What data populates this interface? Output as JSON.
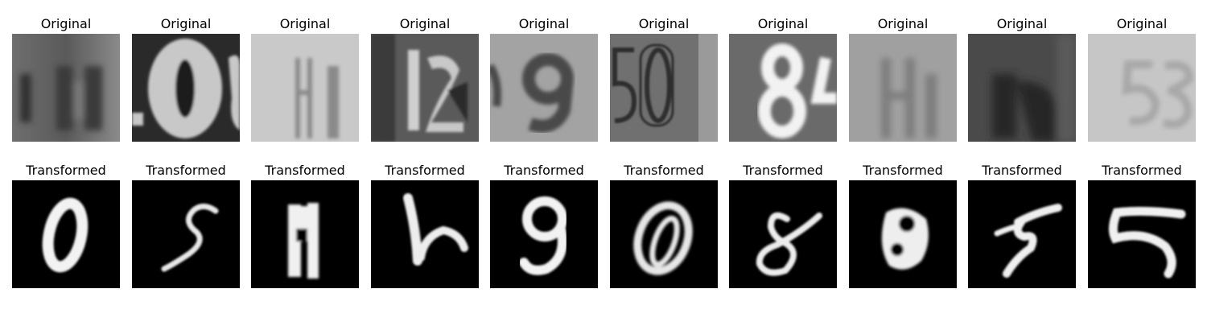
{
  "figure": {
    "rows": [
      {
        "title": "Original",
        "panels": [
          {
            "image": "original-digit-image",
            "title": "Original"
          },
          {
            "image": "original-digit-image",
            "title": "Original"
          },
          {
            "image": "original-digit-image",
            "title": "Original"
          },
          {
            "image": "original-digit-image",
            "title": "Original"
          },
          {
            "image": "original-digit-image",
            "title": "Original"
          },
          {
            "image": "original-digit-image",
            "title": "Original"
          },
          {
            "image": "original-digit-image",
            "title": "Original"
          },
          {
            "image": "original-digit-image",
            "title": "Original"
          },
          {
            "image": "original-digit-image",
            "title": "Original"
          },
          {
            "image": "original-digit-image",
            "title": "Original"
          }
        ]
      },
      {
        "title": "Transformed",
        "panels": [
          {
            "image": "transformed-digit-image",
            "title": "Transformed"
          },
          {
            "image": "transformed-digit-image",
            "title": "Transformed"
          },
          {
            "image": "transformed-digit-image",
            "title": "Transformed"
          },
          {
            "image": "transformed-digit-image",
            "title": "Transformed"
          },
          {
            "image": "transformed-digit-image",
            "title": "Transformed"
          },
          {
            "image": "transformed-digit-image",
            "title": "Transformed"
          },
          {
            "image": "transformed-digit-image",
            "title": "Transformed"
          },
          {
            "image": "transformed-digit-image",
            "title": "Transformed"
          },
          {
            "image": "transformed-digit-image",
            "title": "Transformed"
          },
          {
            "image": "transformed-digit-image",
            "title": "Transformed"
          }
        ]
      }
    ]
  }
}
